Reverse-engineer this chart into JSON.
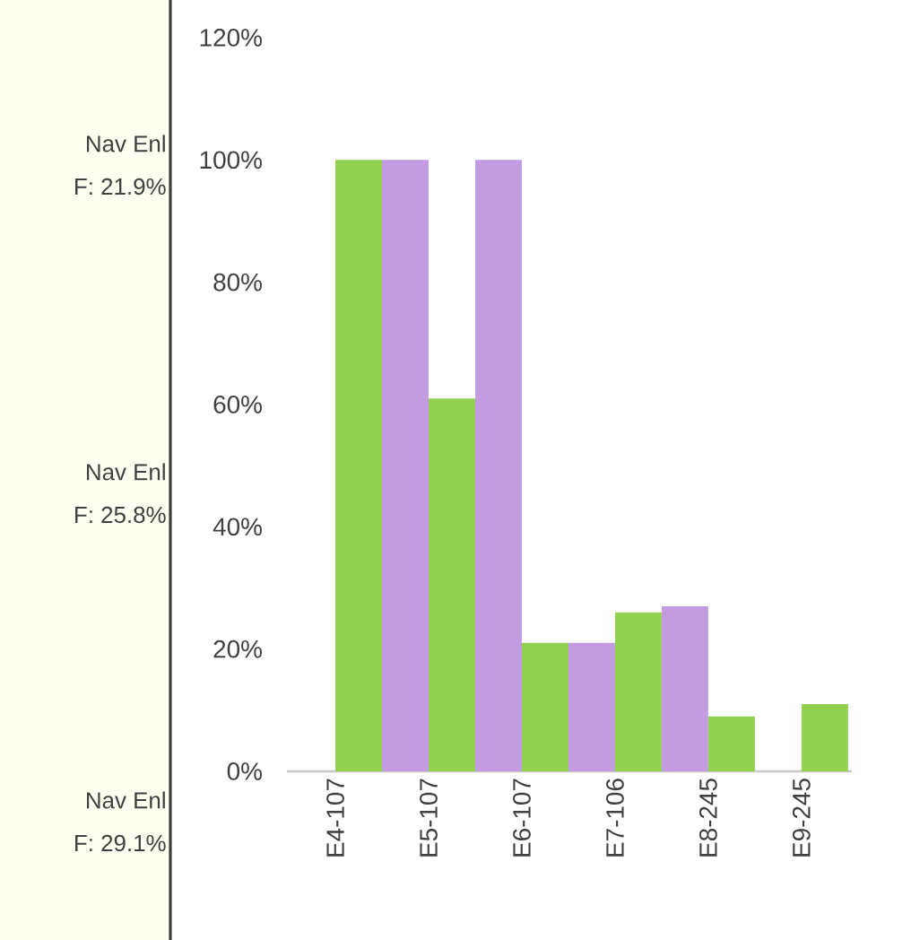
{
  "chart_data": {
    "type": "bar",
    "categories": [
      "E4-107",
      "E5-107",
      "E6-107",
      "E7-106",
      "E8-245",
      "E9-245"
    ],
    "series": [
      {
        "color": "#c39be0",
        "values": [
          null,
          100,
          100,
          21,
          27,
          null
        ]
      },
      {
        "color": "#92d050",
        "values": [
          100,
          61,
          21,
          26,
          9,
          11
        ]
      }
    ],
    "ylim": [
      0,
      120
    ],
    "yticks": [
      {
        "value": 0,
        "label": "0%"
      },
      {
        "value": 20,
        "label": "20%"
      },
      {
        "value": 40,
        "label": "40%"
      },
      {
        "value": 60,
        "label": "60%"
      },
      {
        "value": 80,
        "label": "80%"
      },
      {
        "value": 100,
        "label": "100%"
      },
      {
        "value": 120,
        "label": "120%"
      }
    ],
    "annotations": [
      "Nav Enl",
      "F: 21.9%",
      "Nav Enl",
      "F: 25.8%",
      "Nav Enl",
      "F: 29.1%"
    ],
    "grid": false
  }
}
